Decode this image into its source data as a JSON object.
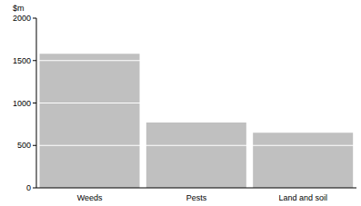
{
  "chart_data": {
    "type": "bar",
    "y_label": "$m",
    "categories": [
      "Weeds",
      "Pests",
      "Land and soil"
    ],
    "values": [
      1580,
      770,
      650
    ],
    "color": "#c0c0c0",
    "ylim": [
      0,
      2000
    ],
    "yticks": [
      0,
      500,
      1000,
      1500,
      2000
    ],
    "grid": true
  }
}
